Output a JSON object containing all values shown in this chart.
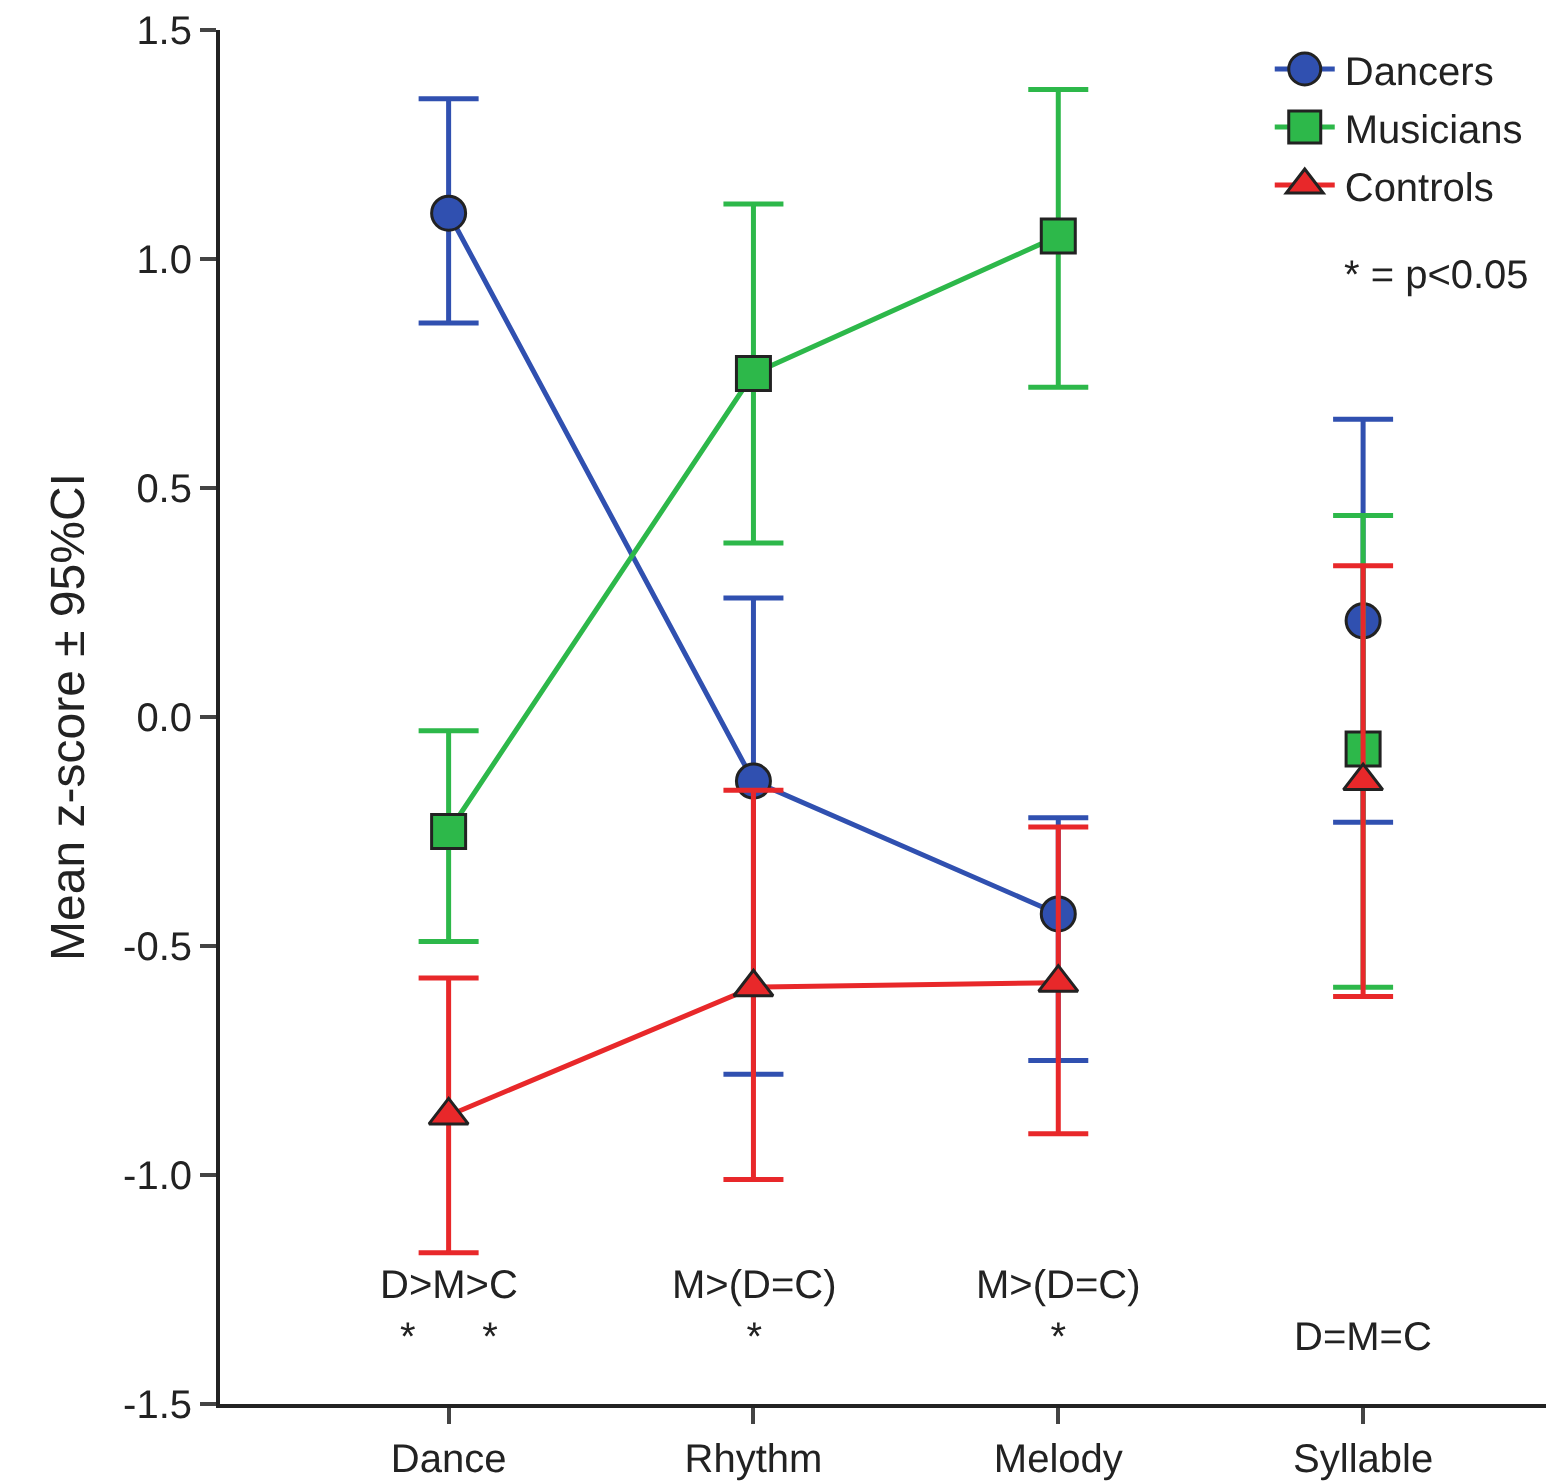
{
  "chart_data": {
    "type": "line",
    "ylabel": "Mean z-score ± 95%CI",
    "categories": [
      "Dance",
      "Rhythm",
      "Melody",
      "Syllable"
    ],
    "ylim": [
      -1.5,
      1.5
    ],
    "yticks": [
      {
        "value": -1.5,
        "label": "-1.5"
      },
      {
        "value": -1,
        "label": "-1.0"
      },
      {
        "value": -0.5,
        "label": "-0.5"
      },
      {
        "value": 0,
        "label": "0.0"
      },
      {
        "value": 0.5,
        "label": "0.5"
      },
      {
        "value": 1,
        "label": "1.0"
      },
      {
        "value": 1.5,
        "label": "1.5"
      }
    ],
    "grid": false,
    "legend": "top right",
    "series": [
      {
        "name": "Dancers",
        "color": "#3050b0",
        "marker": "circle",
        "values": [
          1.1,
          -0.14,
          -0.43,
          null
        ],
        "errors": [
          [
            0.86,
            1.35
          ],
          [
            -0.78,
            0.26
          ],
          [
            -0.75,
            -0.22
          ],
          null
        ]
      },
      {
        "name": "Musicians",
        "color": "#2db84a",
        "marker": "square",
        "values": [
          -0.25,
          0.75,
          1.05,
          null
        ],
        "errors": [
          [
            -0.49,
            -0.03
          ],
          [
            0.38,
            1.12
          ],
          [
            0.72,
            1.37
          ],
          null
        ]
      },
      {
        "name": "Controls",
        "color": "#e8282a",
        "marker": "triangle",
        "values": [
          -0.87,
          -0.59,
          -0.58,
          null
        ],
        "errors": [
          [
            -1.17,
            -0.57
          ],
          [
            -1.01,
            -0.16
          ],
          [
            -0.91,
            -0.24
          ],
          null
        ]
      },
      {
        "type": "scatter",
        "color": "#3050b0",
        "marker": "circle",
        "values": [
          null,
          null,
          null,
          0.21
        ],
        "errors": [
          null,
          null,
          null,
          [
            -0.23,
            0.65
          ]
        ]
      },
      {
        "type": "scatter",
        "color": "#2db84a",
        "marker": "square",
        "values": [
          null,
          null,
          null,
          -0.07
        ],
        "errors": [
          null,
          null,
          null,
          [
            -0.59,
            0.44
          ]
        ]
      },
      {
        "type": "scatter",
        "color": "#e8282a",
        "marker": "triangle",
        "values": [
          null,
          null,
          null,
          -0.14
        ],
        "errors": [
          null,
          null,
          null,
          [
            -0.61,
            0.33
          ]
        ]
      }
    ],
    "annotations": [
      "* = p<0.05",
      "D>M>C\n*      *",
      "M>(D=C)\n*",
      "M>(D=C)\n*",
      "D=M=C"
    ]
  }
}
